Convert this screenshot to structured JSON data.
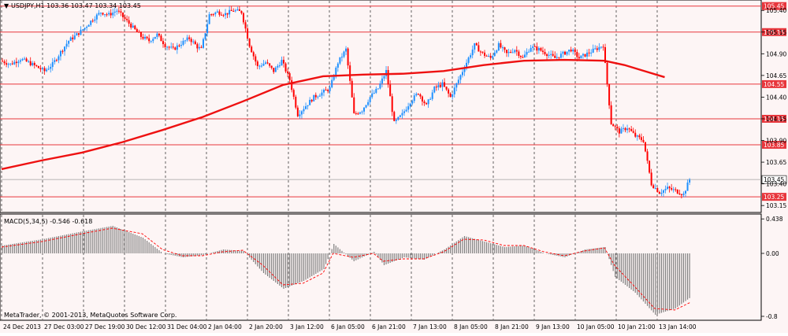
{
  "header": {
    "symbol_line": "USDJPY,H1  103.36 103.47 103.34 103.45",
    "macd_line": "MACD(5,34,5) -0.546 -0.618",
    "copyright": "MetaTrader, © 2001-2013, MetaQuotes Software Corp."
  },
  "colors": {
    "background": "#fdf5f5",
    "bull": "#1e90ff",
    "bear": "#ff0000",
    "ma": "#ee1111",
    "level_line": "#e8363c",
    "grid": "#000000",
    "histogram": "#808080",
    "signal": "#ff0000"
  },
  "chart_data": [
    {
      "type": "candlestick",
      "title": "USDJPY,H1",
      "ylim": [
        103.07,
        105.52
      ],
      "y_ticks": [
        "105.40",
        "105.15",
        "104.90",
        "104.65",
        "104.40",
        "104.15",
        "103.90",
        "103.65",
        "103.40",
        "103.15"
      ],
      "x_ticks": [
        "24 Dec 2013",
        "27 Dec 03:00",
        "27 Dec 19:00",
        "30 Dec 12:00",
        "31 Dec 04:00",
        "2 Jan 04:00",
        "2 Jan 20:00",
        "3 Jan 12:00",
        "6 Jan 05:00",
        "6 Jan 21:00",
        "7 Jan 13:00",
        "8 Jan 05:00",
        "8 Jan 21:00",
        "9 Jan 13:00",
        "10 Jan 05:00",
        "10 Jan 21:00",
        "13 Jan 14:00"
      ],
      "levels": [
        {
          "value": 105.45,
          "label": "105.45"
        },
        {
          "value": 105.15,
          "label": "105.15"
        },
        {
          "value": 104.55,
          "label": "104.55"
        },
        {
          "value": 104.15,
          "label": "104.15"
        },
        {
          "value": 103.85,
          "label": "103.85"
        },
        {
          "value": 103.25,
          "label": "103.25"
        }
      ],
      "current": {
        "value": 103.45,
        "label": "103.45"
      },
      "price_path": [
        [
          0,
          104.82
        ],
        [
          5,
          104.78
        ],
        [
          10,
          104.84
        ],
        [
          14,
          104.8
        ],
        [
          18,
          104.75
        ],
        [
          22,
          104.7
        ],
        [
          26,
          104.78
        ],
        [
          30,
          104.92
        ],
        [
          34,
          105.05
        ],
        [
          38,
          105.12
        ],
        [
          42,
          105.2
        ],
        [
          46,
          105.3
        ],
        [
          50,
          105.38
        ],
        [
          54,
          105.35
        ],
        [
          58,
          105.4
        ],
        [
          62,
          105.3
        ],
        [
          66,
          105.2
        ],
        [
          70,
          105.1
        ],
        [
          74,
          105.05
        ],
        [
          78,
          105.12
        ],
        [
          82,
          105.0
        ],
        [
          86,
          104.95
        ],
        [
          90,
          105.02
        ],
        [
          94,
          105.08
        ],
        [
          98,
          104.98
        ],
        [
          100,
          104.95
        ],
        [
          104,
          105.35
        ],
        [
          108,
          105.38
        ],
        [
          112,
          105.36
        ],
        [
          116,
          105.4
        ],
        [
          120,
          105.38
        ],
        [
          124,
          105.0
        ],
        [
          128,
          104.75
        ],
        [
          132,
          104.8
        ],
        [
          136,
          104.7
        ],
        [
          140,
          104.82
        ],
        [
          144,
          104.6
        ],
        [
          148,
          104.2
        ],
        [
          152,
          104.3
        ],
        [
          156,
          104.4
        ],
        [
          160,
          104.45
        ],
        [
          164,
          104.5
        ],
        [
          168,
          104.8
        ],
        [
          172,
          104.95
        ],
        [
          176,
          104.2
        ],
        [
          180,
          104.25
        ],
        [
          184,
          104.4
        ],
        [
          188,
          104.5
        ],
        [
          192,
          104.7
        ],
        [
          196,
          104.1
        ],
        [
          200,
          104.2
        ],
        [
          204,
          104.35
        ],
        [
          208,
          104.45
        ],
        [
          212,
          104.3
        ],
        [
          216,
          104.5
        ],
        [
          220,
          104.55
        ],
        [
          224,
          104.4
        ],
        [
          228,
          104.6
        ],
        [
          232,
          104.8
        ],
        [
          236,
          105.0
        ],
        [
          240,
          104.9
        ],
        [
          244,
          104.85
        ],
        [
          248,
          105.0
        ],
        [
          252,
          104.9
        ],
        [
          256,
          104.95
        ],
        [
          260,
          104.85
        ],
        [
          264,
          104.98
        ],
        [
          268,
          104.95
        ],
        [
          272,
          104.9
        ],
        [
          276,
          104.85
        ],
        [
          280,
          104.9
        ],
        [
          284,
          104.95
        ],
        [
          288,
          104.85
        ],
        [
          292,
          104.9
        ],
        [
          296,
          104.95
        ],
        [
          300,
          105.0
        ],
        [
          304,
          104.1
        ],
        [
          308,
          104.0
        ],
        [
          312,
          104.05
        ],
        [
          316,
          103.95
        ],
        [
          320,
          103.9
        ],
        [
          324,
          103.4
        ],
        [
          328,
          103.3
        ],
        [
          332,
          103.35
        ],
        [
          336,
          103.32
        ],
        [
          340,
          103.28
        ],
        [
          343,
          103.45
        ]
      ],
      "ma_path": [
        [
          0,
          103.57
        ],
        [
          20,
          103.67
        ],
        [
          40,
          103.76
        ],
        [
          60,
          103.88
        ],
        [
          80,
          104.02
        ],
        [
          100,
          104.17
        ],
        [
          120,
          104.35
        ],
        [
          140,
          104.54
        ],
        [
          160,
          104.64
        ],
        [
          180,
          104.66
        ],
        [
          200,
          104.67
        ],
        [
          220,
          104.7
        ],
        [
          240,
          104.77
        ],
        [
          260,
          104.82
        ],
        [
          280,
          104.83
        ],
        [
          300,
          104.82
        ],
        [
          310,
          104.77
        ],
        [
          320,
          104.7
        ],
        [
          330,
          104.63
        ]
      ]
    },
    {
      "type": "histogram",
      "title": "MACD(5,34,5)",
      "ylim": [
        -0.85,
        0.5
      ],
      "y_ticks": [
        "0.438",
        "0.00",
        "-0.8"
      ],
      "macd_path": [
        [
          0,
          0.1
        ],
        [
          20,
          0.18
        ],
        [
          40,
          0.28
        ],
        [
          55,
          0.35
        ],
        [
          70,
          0.2
        ],
        [
          80,
          0.0
        ],
        [
          90,
          -0.05
        ],
        [
          100,
          -0.02
        ],
        [
          110,
          0.05
        ],
        [
          120,
          0.03
        ],
        [
          130,
          -0.25
        ],
        [
          140,
          -0.45
        ],
        [
          150,
          -0.35
        ],
        [
          160,
          -0.2
        ],
        [
          165,
          0.12
        ],
        [
          175,
          -0.1
        ],
        [
          185,
          0.02
        ],
        [
          190,
          -0.15
        ],
        [
          200,
          -0.05
        ],
        [
          210,
          -0.08
        ],
        [
          220,
          0.05
        ],
        [
          230,
          0.22
        ],
        [
          240,
          0.15
        ],
        [
          250,
          0.08
        ],
        [
          260,
          0.1
        ],
        [
          270,
          0.0
        ],
        [
          280,
          -0.05
        ],
        [
          290,
          0.05
        ],
        [
          300,
          0.08
        ],
        [
          305,
          -0.3
        ],
        [
          315,
          -0.5
        ],
        [
          325,
          -0.78
        ],
        [
          335,
          -0.7
        ],
        [
          343,
          -0.55
        ]
      ],
      "signal_path": [
        [
          0,
          0.08
        ],
        [
          20,
          0.15
        ],
        [
          40,
          0.25
        ],
        [
          55,
          0.32
        ],
        [
          70,
          0.25
        ],
        [
          80,
          0.05
        ],
        [
          90,
          -0.03
        ],
        [
          100,
          -0.03
        ],
        [
          110,
          0.02
        ],
        [
          120,
          0.04
        ],
        [
          130,
          -0.15
        ],
        [
          140,
          -0.4
        ],
        [
          150,
          -0.38
        ],
        [
          160,
          -0.25
        ],
        [
          165,
          0.0
        ],
        [
          175,
          -0.05
        ],
        [
          185,
          0.0
        ],
        [
          190,
          -0.1
        ],
        [
          200,
          -0.07
        ],
        [
          210,
          -0.07
        ],
        [
          220,
          0.02
        ],
        [
          230,
          0.18
        ],
        [
          240,
          0.17
        ],
        [
          250,
          0.1
        ],
        [
          260,
          0.1
        ],
        [
          270,
          0.02
        ],
        [
          280,
          -0.03
        ],
        [
          290,
          0.03
        ],
        [
          300,
          0.07
        ],
        [
          305,
          -0.15
        ],
        [
          315,
          -0.42
        ],
        [
          325,
          -0.7
        ],
        [
          335,
          -0.72
        ],
        [
          343,
          -0.62
        ]
      ]
    }
  ]
}
